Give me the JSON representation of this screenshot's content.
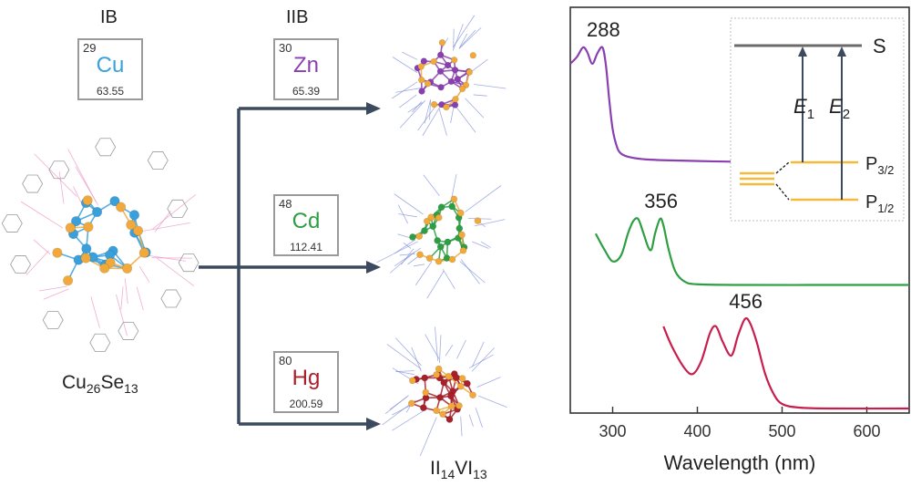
{
  "groups": {
    "ib_label": "IB",
    "iib_label": "IIB"
  },
  "elements": {
    "cu": {
      "number": "29",
      "symbol": "Cu",
      "mass": "63.55",
      "color": "#3aa0dc"
    },
    "zn": {
      "number": "30",
      "symbol": "Zn",
      "mass": "65.39",
      "color": "#8a3fb0"
    },
    "cd": {
      "number": "48",
      "symbol": "Cd",
      "mass": "112.41",
      "color": "#2e9e43"
    },
    "hg": {
      "number": "80",
      "symbol": "Hg",
      "mass": "200.59",
      "color": "#a8202a"
    }
  },
  "formulas": {
    "cu_cluster": {
      "main1": "Cu",
      "sub1": "26",
      "main2": "Se",
      "sub2": "13"
    },
    "product": {
      "main1": "II",
      "sub1": "14",
      "main2": "VI",
      "sub2": "13"
    }
  },
  "colors": {
    "arrow": "#3b4a5e",
    "selenium": "#f0a93a",
    "inset_level": "#f5b93b"
  },
  "inset": {
    "s_label": "S",
    "e1_label": "E",
    "e1_sub": "1",
    "e2_label": "E",
    "e2_sub": "2",
    "p32_label": "P",
    "p32_sub": "3/2",
    "p12_label": "P",
    "p12_sub": "1/2"
  },
  "chart_data": {
    "type": "line",
    "xlabel": "Wavelength (nm)",
    "ylabel": "",
    "xlim": [
      250,
      650
    ],
    "xticks": [
      300,
      400,
      500,
      600
    ],
    "xtick_labels": [
      "300",
      "400",
      "500",
      "600"
    ],
    "series": [
      {
        "color": "#8a3fb0",
        "peak_label": "288",
        "x": [
          250,
          258,
          265,
          270,
          276,
          282,
          288,
          292,
          296,
          300,
          305,
          310,
          320,
          340,
          380,
          450,
          500
        ],
        "y": [
          0.86,
          0.92,
          1.0,
          0.96,
          0.86,
          0.95,
          1.0,
          0.85,
          0.55,
          0.3,
          0.15,
          0.09,
          0.06,
          0.04,
          0.03,
          0.02,
          0.02
        ]
      },
      {
        "color": "#2e9e43",
        "peak_label": "356",
        "x": [
          280,
          290,
          300,
          310,
          318,
          324,
          330,
          336,
          342,
          346,
          350,
          356,
          360,
          366,
          374,
          385,
          400,
          450,
          550,
          650
        ],
        "y": [
          0.78,
          0.55,
          0.37,
          0.46,
          0.78,
          0.96,
          1.0,
          0.8,
          0.58,
          0.55,
          0.78,
          1.0,
          0.9,
          0.55,
          0.22,
          0.07,
          0.03,
          0.02,
          0.02,
          0.02
        ]
      },
      {
        "color": "#c81e4e",
        "peak_label": "456",
        "x": [
          360,
          370,
          385,
          395,
          405,
          415,
          422,
          430,
          440,
          448,
          456,
          462,
          470,
          480,
          490,
          500,
          520,
          560,
          650
        ],
        "y": [
          0.92,
          0.7,
          0.46,
          0.4,
          0.55,
          0.85,
          0.92,
          0.75,
          0.6,
          0.82,
          1.0,
          0.96,
          0.75,
          0.4,
          0.18,
          0.07,
          0.03,
          0.02,
          0.02
        ]
      }
    ]
  }
}
